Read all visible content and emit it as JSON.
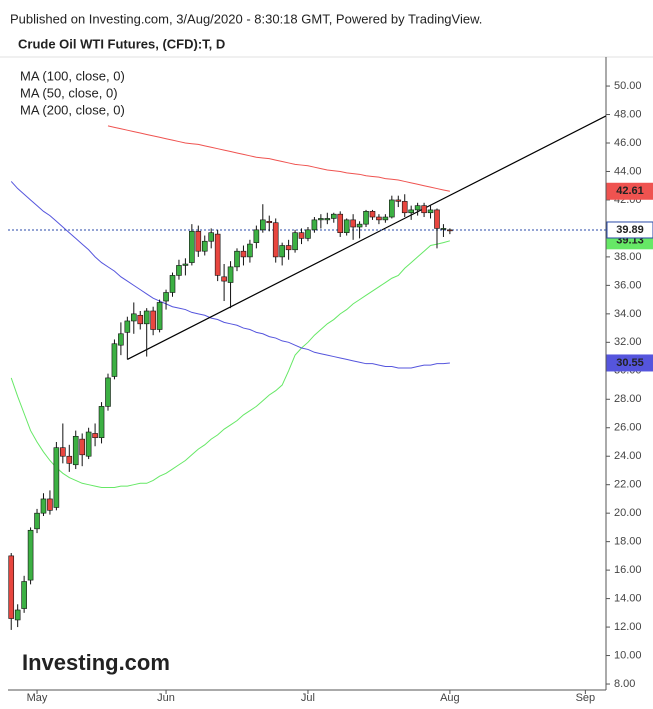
{
  "chart_data": {
    "type": "candlestick",
    "subtitle": "Published on Investing.com, 3/Aug/2020 - 8:30:18 GMT, Powered by TradingView.",
    "title": "Crude Oil WTI Futures, (CFD):T, D",
    "watermark": "Investing.com",
    "up_color": "#3cb043",
    "down_color": "#e8463f",
    "open": [
      17.0,
      12.5,
      13.3,
      15.3,
      18.9,
      20.0,
      21.0,
      20.4,
      24.6,
      24.0,
      23.4,
      25.2,
      24.0,
      25.6,
      25.3,
      27.5,
      29.6,
      31.8,
      32.7,
      33.5,
      33.9,
      33.3,
      34.2,
      32.9,
      34.9,
      35.5,
      36.7,
      37.4,
      37.6,
      39.8,
      38.4,
      39.1,
      39.6,
      36.6,
      36.2,
      37.3,
      38.4,
      38.0,
      39.0,
      39.9,
      40.5,
      40.4,
      38.0,
      38.8,
      38.5,
      39.7,
      39.3,
      39.9,
      40.6,
      40.6,
      40.7,
      41.0,
      39.7,
      40.6,
      40.1,
      40.3,
      41.2,
      40.8,
      40.6,
      40.8,
      42.0,
      41.9,
      41.1,
      41.3,
      41.6,
      41.1,
      41.3,
      40.0,
      39.9
    ],
    "high": [
      17.2,
      13.6,
      15.6,
      19.0,
      20.3,
      21.4,
      21.6,
      25.0,
      26.3,
      24.8,
      25.8,
      25.6,
      26.0,
      26.3,
      27.8,
      29.8,
      32.2,
      33.4,
      33.8,
      34.8,
      34.2,
      34.4,
      34.5,
      35.0,
      35.7,
      36.9,
      37.8,
      37.9,
      40.3,
      40.2,
      39.5,
      40.0,
      39.9,
      37.5,
      37.7,
      38.6,
      38.8,
      39.2,
      40.2,
      41.7,
      40.9,
      40.7,
      39.0,
      39.2,
      39.9,
      40.0,
      40.1,
      40.8,
      41.0,
      41.1,
      41.1,
      41.2,
      40.7,
      41.0,
      40.5,
      41.3,
      41.3,
      41.0,
      41.0,
      42.3,
      42.3,
      42.4,
      41.6,
      41.8,
      41.8,
      41.6,
      41.4,
      40.3,
      40.0
    ],
    "low": [
      11.8,
      12.0,
      13.0,
      15.0,
      18.6,
      19.8,
      19.9,
      20.2,
      23.5,
      22.9,
      23.1,
      23.3,
      23.8,
      24.7,
      24.9,
      27.2,
      29.4,
      31.1,
      30.8,
      32.6,
      32.9,
      31.0,
      32.5,
      32.7,
      34.3,
      35.2,
      36.4,
      36.7,
      37.4,
      38.0,
      38.1,
      38.6,
      36.3,
      34.9,
      34.4,
      37.0,
      37.4,
      37.6,
      38.6,
      39.7,
      39.8,
      37.6,
      37.4,
      37.8,
      38.3,
      38.9,
      39.1,
      39.7,
      40.0,
      40.3,
      40.4,
      39.4,
      39.5,
      39.2,
      39.3,
      40.1,
      40.6,
      40.3,
      40.4,
      40.7,
      41.5,
      40.8,
      40.6,
      40.9,
      40.8,
      40.7,
      38.6,
      39.4,
      39.6
    ],
    "close": [
      12.6,
      13.2,
      15.2,
      18.8,
      20.0,
      21.0,
      20.2,
      24.6,
      24.0,
      23.5,
      25.4,
      24.1,
      25.7,
      25.3,
      27.5,
      29.5,
      31.9,
      32.6,
      33.5,
      34.0,
      33.3,
      34.2,
      32.9,
      34.8,
      35.5,
      36.7,
      37.4,
      37.5,
      39.8,
      38.4,
      39.1,
      39.7,
      36.7,
      36.3,
      37.3,
      38.4,
      38.0,
      38.9,
      39.9,
      40.6,
      40.4,
      38.0,
      38.8,
      38.5,
      39.7,
      39.3,
      39.9,
      40.6,
      40.7,
      40.7,
      41.0,
      39.7,
      40.6,
      40.1,
      40.3,
      41.2,
      40.8,
      40.6,
      40.8,
      42.0,
      41.9,
      41.1,
      41.3,
      41.6,
      41.1,
      41.3,
      40.0,
      40.0,
      39.89
    ],
    "series": [
      {
        "name": "MA (100, close, 0)",
        "color": "#ef5350",
        "values": [
          null,
          null,
          null,
          null,
          null,
          null,
          null,
          null,
          null,
          null,
          null,
          null,
          null,
          null,
          null,
          47.2,
          47.1,
          47.0,
          46.9,
          46.8,
          46.7,
          46.6,
          46.5,
          46.4,
          46.3,
          46.2,
          46.1,
          46.0,
          45.95,
          45.9,
          45.8,
          45.7,
          45.6,
          45.5,
          45.4,
          45.3,
          45.2,
          45.1,
          45.0,
          44.95,
          44.9,
          44.8,
          44.7,
          44.6,
          44.5,
          44.45,
          44.4,
          44.3,
          44.2,
          44.1,
          44.05,
          44.0,
          43.9,
          43.85,
          43.8,
          43.7,
          43.65,
          43.6,
          43.5,
          43.45,
          43.4,
          43.3,
          43.2,
          43.1,
          43.0,
          42.9,
          42.8,
          42.7,
          42.61
        ]
      },
      {
        "name": "MA (50, close, 0)",
        "color": "#66e866",
        "values": [
          29.5,
          28.2,
          27.0,
          25.8,
          25.0,
          24.3,
          23.7,
          23.2,
          22.8,
          22.5,
          22.3,
          22.1,
          22.0,
          21.9,
          21.8,
          21.8,
          21.8,
          21.9,
          21.9,
          22.0,
          22.1,
          22.1,
          22.3,
          22.6,
          22.8,
          23.1,
          23.4,
          23.7,
          24.1,
          24.5,
          24.8,
          25.2,
          25.5,
          25.9,
          26.2,
          26.5,
          26.9,
          27.2,
          27.5,
          27.9,
          28.3,
          28.6,
          29.0,
          30.0,
          31.1,
          31.6,
          32.0,
          32.5,
          32.9,
          33.3,
          33.6,
          34.0,
          34.3,
          34.7,
          35.0,
          35.3,
          35.6,
          35.9,
          36.2,
          36.5,
          36.7,
          37.2,
          37.6,
          38.0,
          38.4,
          38.8,
          38.9,
          39.0,
          39.13
        ]
      },
      {
        "name": "MA (200, close, 0)",
        "color": "#5555dd",
        "values": [
          43.3,
          42.8,
          42.4,
          42.0,
          41.6,
          41.2,
          40.9,
          40.5,
          40.1,
          39.7,
          39.3,
          38.9,
          38.5,
          38.0,
          37.6,
          37.3,
          37.0,
          36.6,
          36.3,
          36.0,
          35.7,
          35.4,
          35.1,
          34.9,
          34.7,
          34.5,
          34.4,
          34.3,
          34.1,
          34.0,
          33.9,
          33.7,
          33.6,
          33.4,
          33.3,
          33.2,
          33.0,
          32.9,
          32.7,
          32.6,
          32.4,
          32.3,
          32.1,
          32.0,
          31.8,
          31.6,
          31.5,
          31.3,
          31.2,
          31.1,
          31.0,
          30.9,
          30.8,
          30.7,
          30.6,
          30.5,
          30.5,
          30.4,
          30.3,
          30.3,
          30.2,
          30.2,
          30.2,
          30.3,
          30.4,
          30.4,
          30.5,
          30.5,
          30.55
        ]
      }
    ],
    "trendline": {
      "color": "#000000",
      "x": [
        18,
        92.2
      ],
      "y": [
        30.8,
        47.9
      ]
    },
    "xlim": [
      -0.5,
      92.2
    ],
    "xticks": [
      {
        "value": 4,
        "label": "May"
      },
      {
        "value": 24,
        "label": "Jun"
      },
      {
        "value": 46,
        "label": "Jul"
      },
      {
        "value": 68,
        "label": "Aug"
      },
      {
        "value": 89,
        "label": "Sep"
      }
    ],
    "ylim": [
      7.58,
      52.04
    ],
    "yticks": [
      {
        "value": 8,
        "label": "8.00"
      },
      {
        "value": 10,
        "label": "10.00"
      },
      {
        "value": 12,
        "label": "12.00"
      },
      {
        "value": 14,
        "label": "14.00"
      },
      {
        "value": 16,
        "label": "16.00"
      },
      {
        "value": 18,
        "label": "18.00"
      },
      {
        "value": 20,
        "label": "20.00"
      },
      {
        "value": 22,
        "label": "22.00"
      },
      {
        "value": 24,
        "label": "24.00"
      },
      {
        "value": 26,
        "label": "26.00"
      },
      {
        "value": 28,
        "label": "28.00"
      },
      {
        "value": 30,
        "label": "30.00"
      },
      {
        "value": 32,
        "label": "32.00"
      },
      {
        "value": 34,
        "label": "34.00"
      },
      {
        "value": 36,
        "label": "36.00"
      },
      {
        "value": 38,
        "label": "38.00"
      },
      {
        "value": 40,
        "label": "40.00"
      },
      {
        "value": 42,
        "label": "42.00"
      },
      {
        "value": 44,
        "label": "44.00"
      },
      {
        "value": 46,
        "label": "46.00"
      },
      {
        "value": 48,
        "label": "48.00"
      },
      {
        "value": 50,
        "label": "50.00"
      }
    ]
  }
}
